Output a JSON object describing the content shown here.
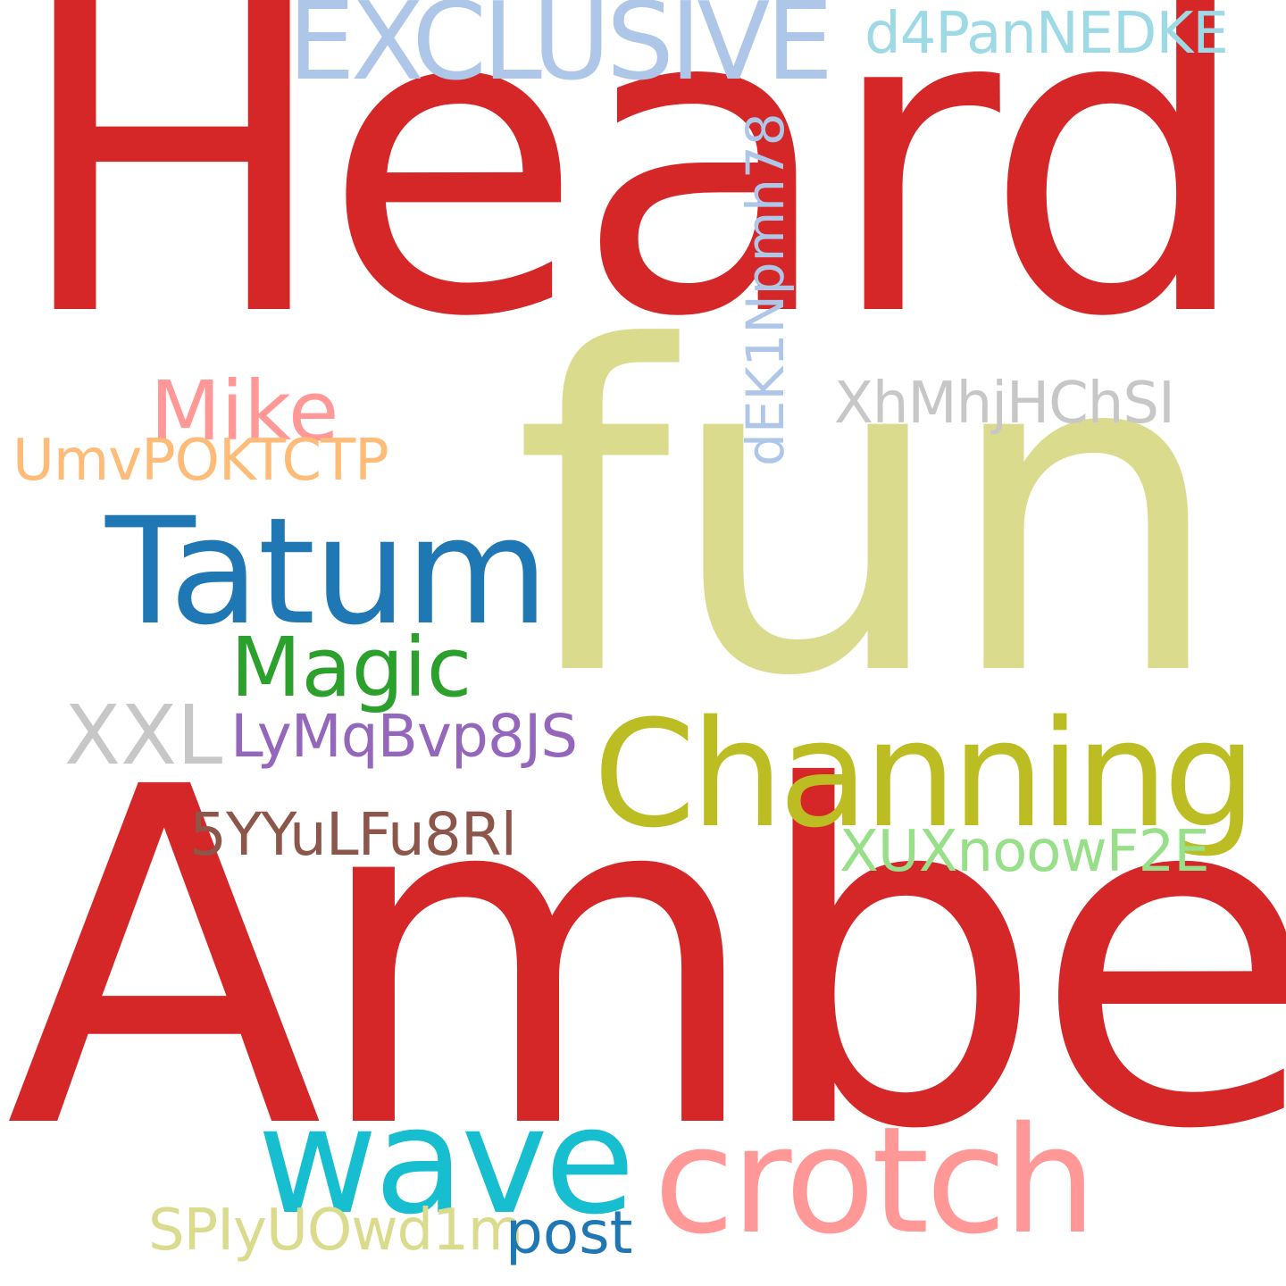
{
  "background": "#ffffff",
  "words": [
    {
      "id": "heard",
      "text": "Heard",
      "color": "#d62728"
    },
    {
      "id": "amber",
      "text": "Amber",
      "color": "#d62728"
    },
    {
      "id": "fun",
      "text": "fun",
      "color": "#dbdb8d"
    },
    {
      "id": "exclusive",
      "text": "EXCLUSIVE",
      "color": "#aec7e8"
    },
    {
      "id": "d4pannedke",
      "text": "d4PanNEDKE",
      "color": "#9edae5"
    },
    {
      "id": "dek1npmh78",
      "text": "dEK1Npmh78",
      "color": "#aec7e8"
    },
    {
      "id": "mike",
      "text": "Mike",
      "color": "#ff9896"
    },
    {
      "id": "umvpoktctp",
      "text": "UmvPOKTCTP",
      "color": "#ffbb78"
    },
    {
      "id": "xhmhjhchsi",
      "text": "XhMhjHChSI",
      "color": "#c7c7c7"
    },
    {
      "id": "tatum",
      "text": "Tatum",
      "color": "#1f77b4"
    },
    {
      "id": "magic",
      "text": "Magic",
      "color": "#2ca02c"
    },
    {
      "id": "xxl",
      "text": "XXL",
      "color": "#c7c7c7"
    },
    {
      "id": "lymqbvp8js",
      "text": "LyMqBvp8JS",
      "color": "#9467bd"
    },
    {
      "id": "channing",
      "text": "Channing",
      "color": "#bcbd22"
    },
    {
      "id": "5yyulfu8rl",
      "text": "5YYuLFu8Rl",
      "color": "#8c564b"
    },
    {
      "id": "xuxnoowf2e",
      "text": "XUXnoowF2E",
      "color": "#98df8a"
    },
    {
      "id": "wave",
      "text": "wave",
      "color": "#17becf"
    },
    {
      "id": "crotch",
      "text": "crotch",
      "color": "#ff9896"
    },
    {
      "id": "spiyuowd1m",
      "text": "SPIyUOwd1m",
      "color": "#dbdb8d"
    },
    {
      "id": "post",
      "text": "post",
      "color": "#1f77b4"
    }
  ]
}
